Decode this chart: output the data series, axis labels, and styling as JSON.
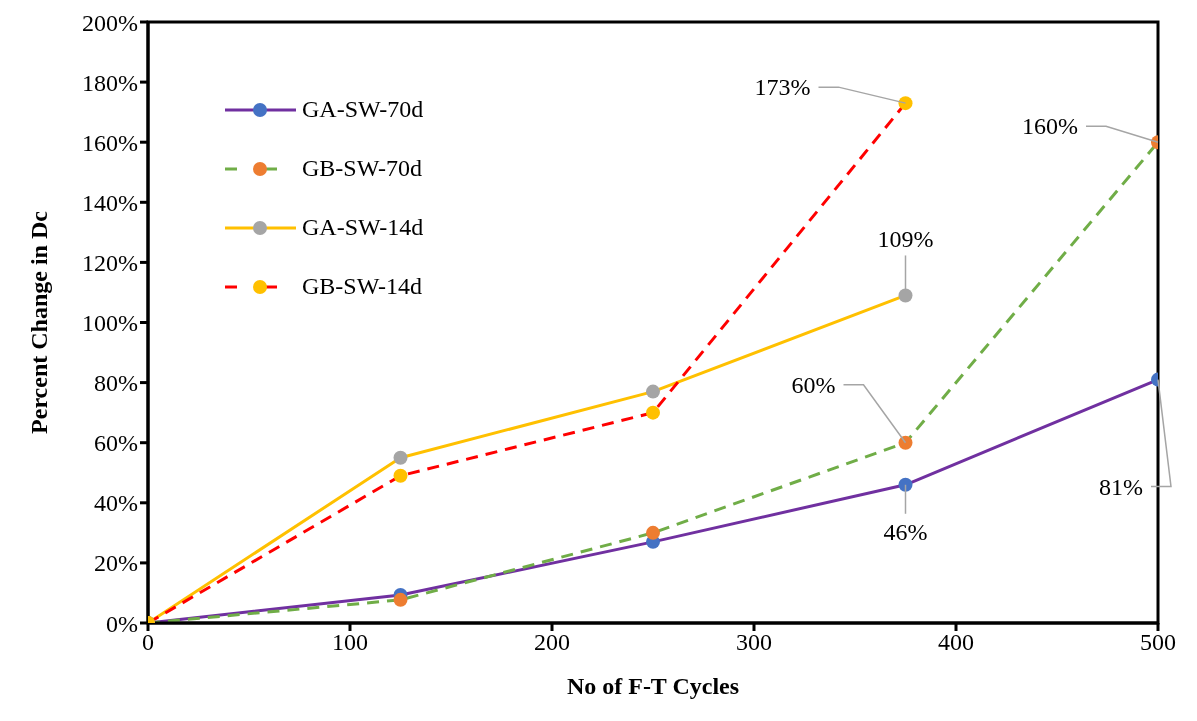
{
  "chart_data": {
    "type": "line",
    "xlabel": "No of F-T Cycles",
    "ylabel": "Percent Change in Dc",
    "x": [
      0,
      125,
      250,
      375,
      500
    ],
    "series": [
      {
        "name": "GA-SW-70d",
        "color": "#7030a0",
        "colors": [
          "#4472c4",
          "#4472c4",
          "#4472c4",
          "#4472c4",
          "#4472c4"
        ],
        "line_style": "solid",
        "values": [
          0,
          9.3,
          27,
          46,
          81
        ],
        "value_labels": [
          null,
          null,
          null,
          "46%",
          "81%"
        ]
      },
      {
        "name": "GB-SW-70d",
        "color": "#70ad47",
        "colors": [
          "#ed7d31",
          "#ed7d31",
          "#ed7d31",
          "#ed7d31",
          "#ed7d31"
        ],
        "line_style": "dashed",
        "values": [
          0,
          7.7,
          30,
          60,
          160
        ],
        "value_labels": [
          null,
          null,
          null,
          "60%",
          "160%"
        ]
      },
      {
        "name": "GA-SW-14d",
        "color": "#ffc000",
        "colors": [
          "#a5a5a5",
          "#a5a5a5",
          "#a5a5a5",
          "#a5a5a5"
        ],
        "line_style": "solid",
        "x": [
          0,
          125,
          250,
          375
        ],
        "values": [
          0,
          55,
          77,
          109
        ],
        "value_labels": [
          null,
          null,
          null,
          "109%"
        ]
      },
      {
        "name": "GB-SW-14d",
        "color": "#ff0000",
        "colors": [
          "#ffc000",
          "#ffc000",
          "#ffc000",
          "#ffc000"
        ],
        "line_style": "dashed",
        "x": [
          0,
          125,
          250,
          375
        ],
        "values": [
          0,
          49,
          70,
          173
        ],
        "value_labels": [
          null,
          null,
          null,
          "173%"
        ]
      }
    ],
    "xlim": [
      0,
      500
    ],
    "xticks": [
      0,
      100,
      200,
      300,
      400,
      500
    ],
    "ylim": [
      0,
      200
    ],
    "yticks": [
      {
        "value": 0,
        "label": "0%"
      },
      {
        "value": 20,
        "label": "20%"
      },
      {
        "value": 40,
        "label": "40%"
      },
      {
        "value": 60,
        "label": "60%"
      },
      {
        "value": 80,
        "label": "80%"
      },
      {
        "value": 100,
        "label": "100%"
      },
      {
        "value": 120,
        "label": "120%"
      },
      {
        "value": 140,
        "label": "140%"
      },
      {
        "value": 160,
        "label": "160%"
      },
      {
        "value": 180,
        "label": "180%"
      },
      {
        "value": 200,
        "label": "200%"
      }
    ],
    "grid": false,
    "legend": "top left",
    "marker": "circle"
  }
}
